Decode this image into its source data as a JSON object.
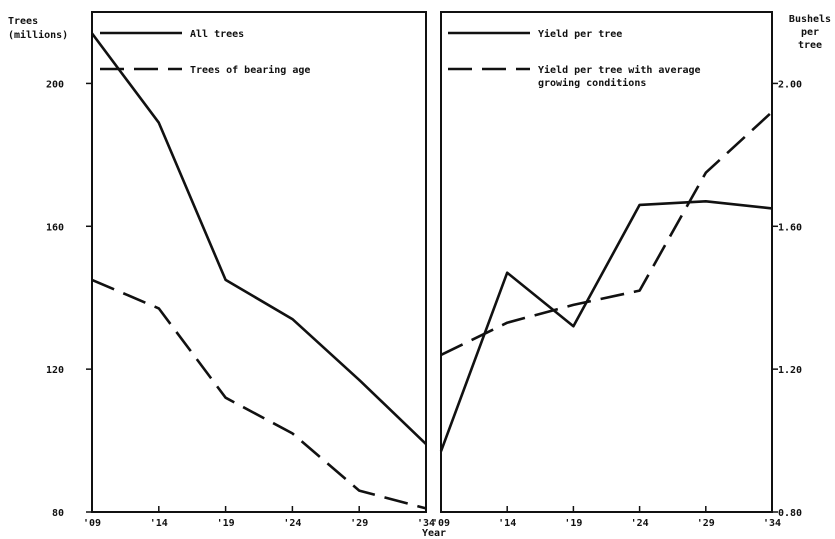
{
  "chart_data": [
    {
      "type": "line",
      "panel": "left",
      "ylabel": "Trees\n(millions)",
      "xlabel": "",
      "ylim": [
        80,
        220
      ],
      "yticks": [
        80,
        120,
        160,
        200
      ],
      "ytick_labels": [
        "80",
        "120",
        "160",
        "200"
      ],
      "x": [
        1909,
        1914,
        1919,
        1924,
        1929,
        1934
      ],
      "x_tick_labels": [
        "'09",
        "'14",
        "'19",
        "'24",
        "'29",
        "'34"
      ],
      "series": [
        {
          "name": "All trees",
          "style": "solid",
          "values": [
            214,
            189,
            145,
            134,
            117,
            99
          ]
        },
        {
          "name": "Trees of bearing age",
          "style": "dashed",
          "values": [
            145,
            137,
            112,
            102,
            86,
            81
          ]
        }
      ]
    },
    {
      "type": "line",
      "panel": "right",
      "ylabel": "Bushels\nper\ntree",
      "xlabel": "Year",
      "ylim": [
        0.8,
        2.2
      ],
      "yticks": [
        0.8,
        1.2,
        1.6,
        2.0
      ],
      "ytick_labels": [
        "0.80",
        "1.20",
        "1.60",
        "2.00"
      ],
      "x": [
        1909,
        1914,
        1919,
        1924,
        1929,
        1934
      ],
      "x_tick_labels": [
        "'09",
        "'14",
        "'19",
        "'24",
        "'29",
        "'34"
      ],
      "series": [
        {
          "name": "Yield per tree",
          "style": "solid",
          "values": [
            0.97,
            1.47,
            1.32,
            1.66,
            1.67,
            1.65
          ]
        },
        {
          "name": "Yield per tree with average growing conditions",
          "style": "dashed",
          "values": [
            1.24,
            1.33,
            1.38,
            1.42,
            1.75,
            1.92
          ]
        }
      ]
    }
  ]
}
